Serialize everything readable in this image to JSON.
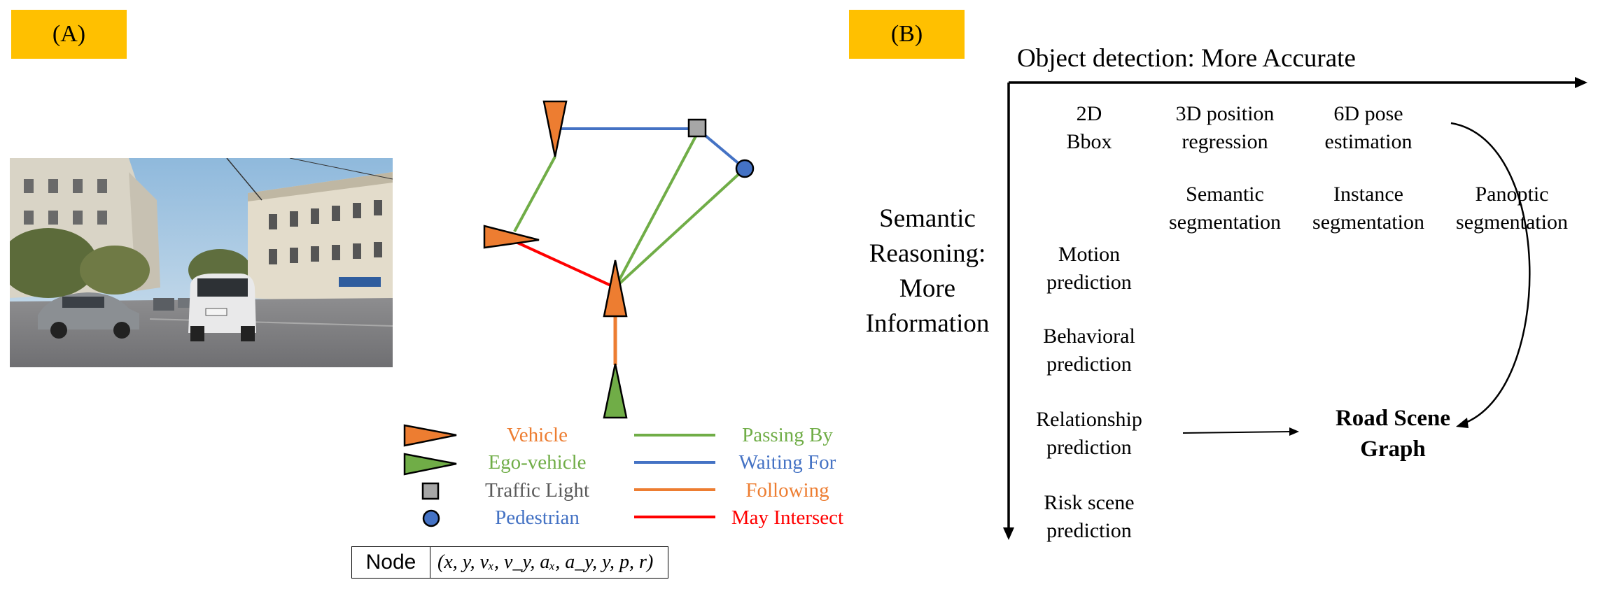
{
  "panel_a": {
    "tag": "(A)",
    "legend_nodes": [
      {
        "label": "Vehicle",
        "color": "#ED7D31",
        "icon": "vehicle-triangle-icon"
      },
      {
        "label": "Ego-vehicle",
        "color": "#70AD47",
        "icon": "ego-vehicle-triangle-icon"
      },
      {
        "label": "Traffic Light",
        "color": "#595959",
        "icon": "traffic-light-square-icon"
      },
      {
        "label": "Pedestrian",
        "color": "#4472C4",
        "icon": "pedestrian-circle-icon"
      }
    ],
    "legend_edges": [
      {
        "label": "Passing By",
        "color": "#70AD47"
      },
      {
        "label": "Waiting For",
        "color": "#4472C4"
      },
      {
        "label": "Following",
        "color": "#ED7D31"
      },
      {
        "label": "May Intersect",
        "color": "#FF0000"
      }
    ],
    "node_table": {
      "header": "Node",
      "attributes": "(x, y, vₓ, v_y, aₓ, a_y, y, p, r)"
    }
  },
  "panel_b": {
    "tag": "(B)",
    "x_axis_label": "Object detection: More Accurate",
    "y_axis_label": "Semantic Reasoning: More Information",
    "y_axis_lines": [
      "Semantic",
      "Reasoning:",
      "More",
      "Information"
    ],
    "row1": [
      {
        "lines": [
          "2D",
          "Bbox"
        ]
      },
      {
        "lines": [
          "3D position",
          "regression"
        ]
      },
      {
        "lines": [
          "6D pose",
          "estimation"
        ]
      }
    ],
    "row2": [
      {
        "lines": [
          "Semantic",
          "segmentation"
        ]
      },
      {
        "lines": [
          "Instance",
          "segmentation"
        ]
      },
      {
        "lines": [
          "Panoptic",
          "segmentation"
        ]
      }
    ],
    "column": [
      {
        "lines": [
          "Motion",
          "prediction"
        ]
      },
      {
        "lines": [
          "Behavioral",
          "prediction"
        ]
      },
      {
        "lines": [
          "Relationship",
          "prediction"
        ]
      },
      {
        "lines": [
          "Risk scene",
          "prediction"
        ]
      }
    ],
    "target": {
      "lines": [
        "Road Scene",
        "Graph"
      ]
    }
  }
}
